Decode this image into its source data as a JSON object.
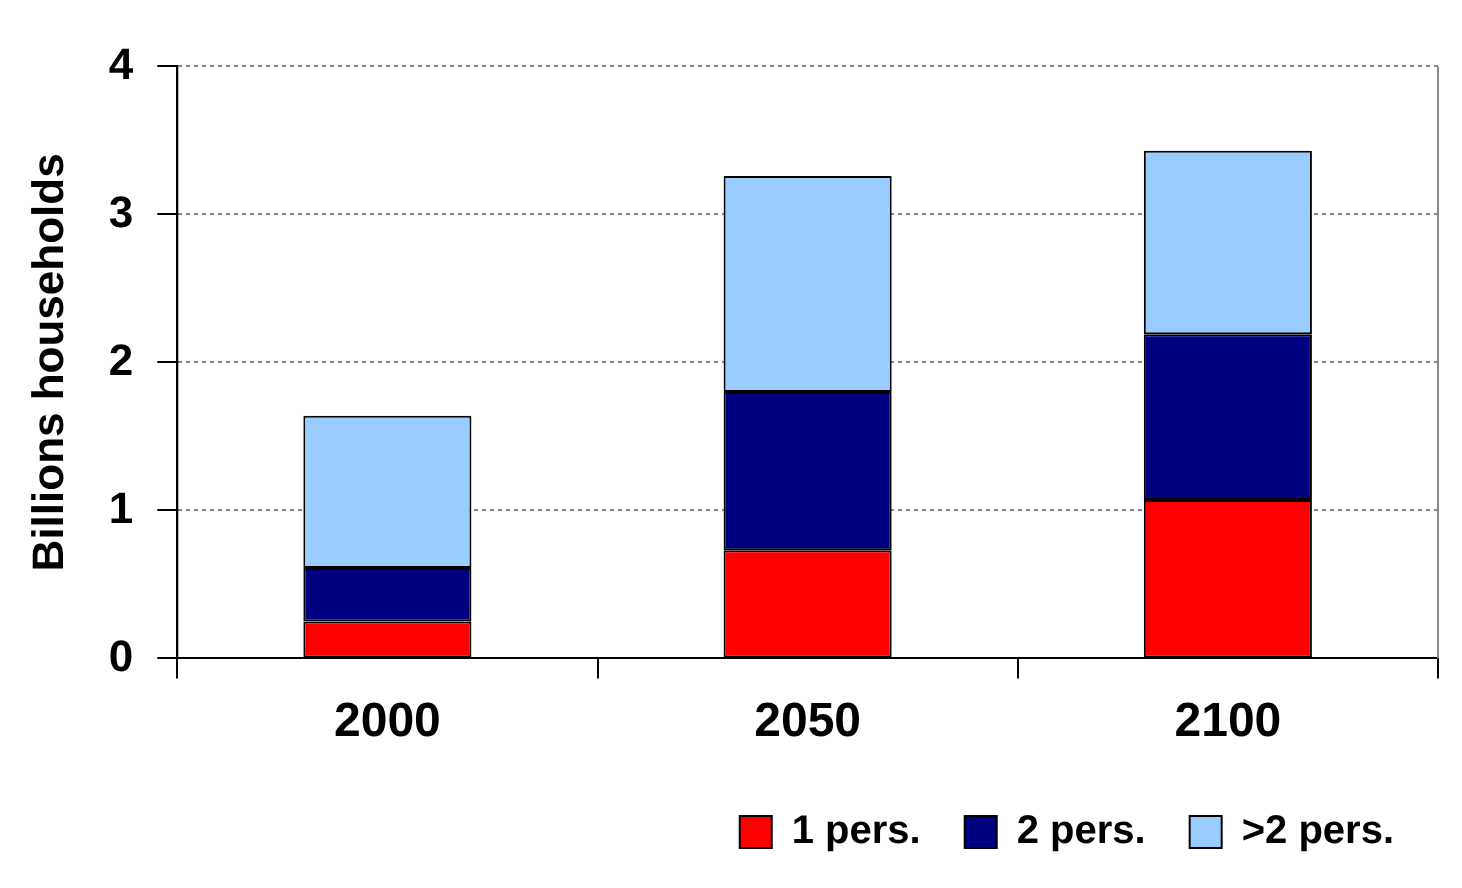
{
  "chart_data": {
    "type": "bar",
    "ylabel": "Billions households",
    "categories": [
      "2000",
      "2050",
      "2100"
    ],
    "stacked": true,
    "series": [
      {
        "name": "1 pers.",
        "color": "#ff0000",
        "values": [
          0.25,
          0.73,
          1.07
        ]
      },
      {
        "name": "2 pers.",
        "color": "#000080",
        "values": [
          0.36,
          1.07,
          1.12
        ]
      },
      {
        "name": ">2 pers.",
        "color": "#99ccff",
        "values": [
          1.03,
          1.46,
          1.24
        ]
      }
    ],
    "ylim": [
      0,
      4
    ],
    "yticks": [
      0,
      1,
      2,
      3,
      4
    ],
    "grid": "y",
    "legend": "bottom"
  }
}
